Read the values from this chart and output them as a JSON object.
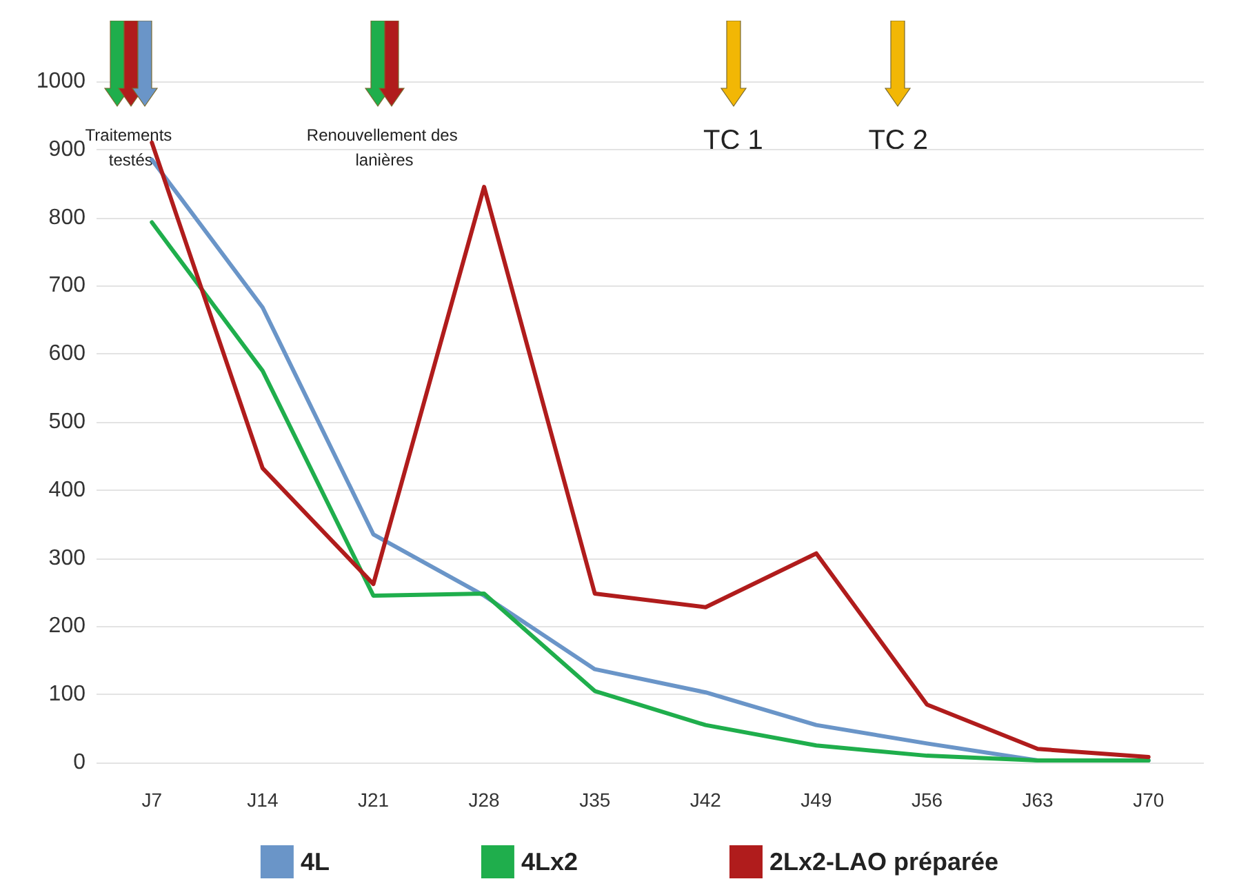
{
  "chart_data": {
    "type": "line",
    "categories": [
      "J7",
      "J14",
      "J21",
      "J28",
      "J35",
      "J42",
      "J49",
      "J56",
      "J63",
      "J70"
    ],
    "series": [
      {
        "name": "4L",
        "color": "#6a95c8",
        "values": [
          885,
          668,
          335,
          245,
          137,
          103,
          55,
          28,
          3,
          3
        ]
      },
      {
        "name": "4Lx2",
        "color": "#1fae4c",
        "values": [
          793,
          575,
          245,
          248,
          105,
          55,
          25,
          10,
          3,
          3
        ]
      },
      {
        "name": "2Lx2-LAO préparée",
        "color": "#b01c1c",
        "values": [
          910,
          432,
          262,
          845,
          248,
          228,
          307,
          85,
          20,
          8
        ]
      }
    ],
    "ylim": [
      0,
      1000
    ],
    "yticks": [
      0,
      100,
      200,
      300,
      400,
      500,
      600,
      700,
      800,
      900,
      1000
    ],
    "grid": "y",
    "legend": "bottom",
    "marker": "none",
    "line_style": "solid",
    "annotations": [
      "Traitements testés",
      "Renouvellement des lanières",
      "TC 1",
      "TC 2"
    ]
  }
}
